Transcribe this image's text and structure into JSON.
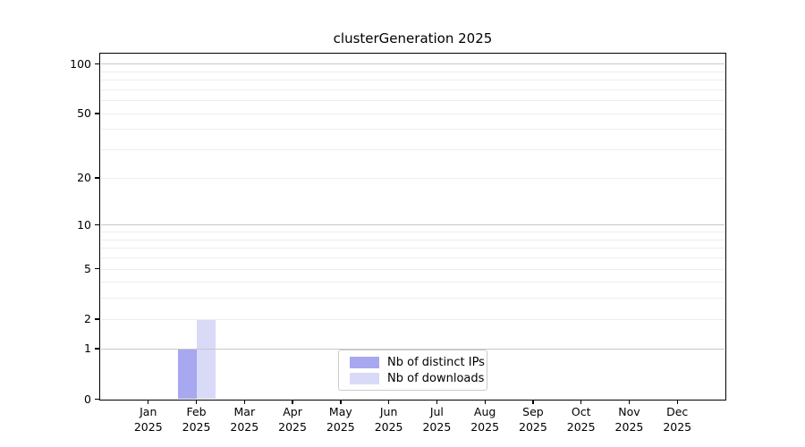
{
  "title": "clusterGeneration 2025",
  "chart_data": {
    "type": "bar",
    "title": "clusterGeneration 2025",
    "xlabel": "",
    "ylabel": "",
    "y_scale": "log10(1+x)",
    "ylim": [
      0,
      115
    ],
    "y_ticks": [
      0,
      1,
      2,
      5,
      10,
      20,
      50,
      100
    ],
    "grid": "horizontal; faint minor lines at 2-9 and 20-90, darker lines at 1, 10, 100",
    "months": [
      "Jan",
      "Feb",
      "Mar",
      "Apr",
      "May",
      "Jun",
      "Jul",
      "Aug",
      "Sep",
      "Oct",
      "Nov",
      "Dec"
    ],
    "year": "2025",
    "series": [
      {
        "name": "Nb of distinct IPs",
        "color": "#a8a8f0",
        "values": [
          0,
          1,
          0,
          0,
          0,
          0,
          0,
          0,
          0,
          0,
          0,
          0
        ]
      },
      {
        "name": "Nb of downloads",
        "color": "#d9d9f8",
        "values": [
          0,
          2,
          0,
          0,
          0,
          0,
          0,
          0,
          0,
          0,
          0,
          0
        ]
      }
    ],
    "legend_position": "bottom-center"
  },
  "colors": {
    "background": "#ffffff",
    "axis": "#000000",
    "grid_major": "#c8c8c8",
    "grid_minor": "#ededed",
    "legend_border": "#cbcbcb"
  }
}
